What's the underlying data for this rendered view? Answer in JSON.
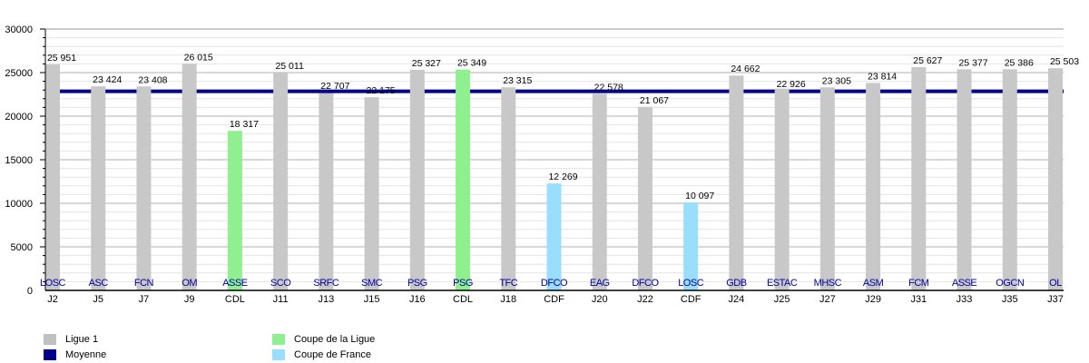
{
  "chart_data": {
    "type": "bar",
    "categories": [
      "J2",
      "J5",
      "J7",
      "J9",
      "CDL",
      "J11",
      "J13",
      "J15",
      "J16",
      "CDL",
      "J18",
      "CDF",
      "J20",
      "J22",
      "CDF",
      "J24",
      "J25",
      "J27",
      "J29",
      "J31",
      "J33",
      "J35",
      "J37"
    ],
    "opponents": [
      "LOSC",
      "ASC",
      "FCN",
      "OM",
      "ASSE",
      "SCO",
      "SRFC",
      "SMC",
      "PSG",
      "PSG",
      "TFC",
      "DFCO",
      "EAG",
      "DFCO",
      "LOSC",
      "GDB",
      "ESTAC",
      "MHSC",
      "ASM",
      "FCM",
      "ASSE",
      "OGCN",
      "OL"
    ],
    "competition": [
      "L1",
      "L1",
      "L1",
      "L1",
      "CDL",
      "L1",
      "L1",
      "L1",
      "L1",
      "CDL",
      "L1",
      "CDF",
      "L1",
      "L1",
      "CDF",
      "L1",
      "L1",
      "L1",
      "L1",
      "L1",
      "L1",
      "L1",
      "L1"
    ],
    "values": [
      25951,
      23424,
      23408,
      26015,
      18317,
      25011,
      22707,
      22175,
      25327,
      25349,
      23315,
      12269,
      22578,
      21067,
      10097,
      24662,
      22926,
      23305,
      23814,
      25627,
      25377,
      25386,
      25503
    ],
    "value_labels": [
      "25 951",
      "23 424",
      "23 408",
      "26 015",
      "18 317",
      "25 011",
      "22 707",
      "22 175",
      "25 327",
      "25 349",
      "23 315",
      "12 269",
      "22 578",
      "21 067",
      "10 097",
      "24 662",
      "22 926",
      "23 305",
      "23 814",
      "25 627",
      "25 377",
      "25 386",
      "25 503"
    ],
    "average": 22850,
    "ylim": [
      0,
      30000
    ],
    "yticks": [
      "0",
      "5000",
      "10000",
      "15000",
      "20000",
      "25000",
      "30000"
    ],
    "grid": true,
    "colors": {
      "L1": "#c8c8c8",
      "CDL": "#90f090",
      "CDF": "#99ddff",
      "average": "#00008b",
      "opponent_text": "#0000a0"
    },
    "legend": {
      "placement": "bottom-left",
      "items": [
        {
          "key": "L1",
          "label": "Ligue 1"
        },
        {
          "key": "average",
          "label": "Moyenne"
        },
        {
          "key": "CDL",
          "label": "Coupe de la Ligue"
        },
        {
          "key": "CDF",
          "label": "Coupe de France"
        }
      ]
    }
  }
}
